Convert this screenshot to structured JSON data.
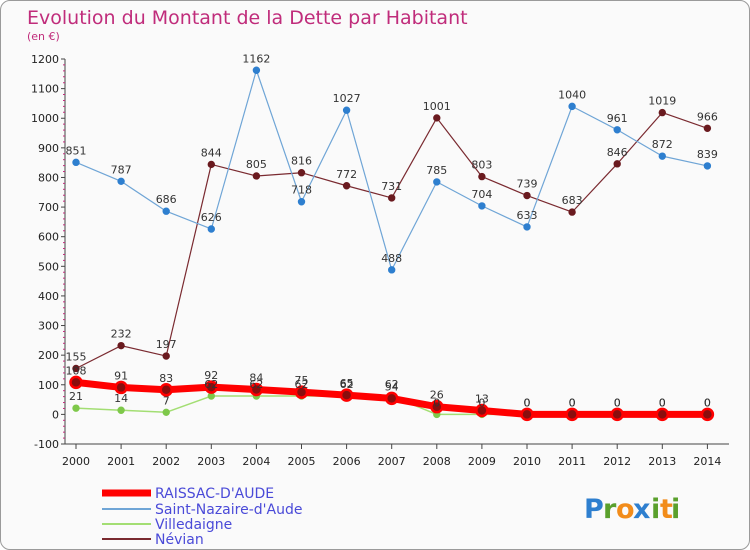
{
  "title": "Evolution du Montant de la Dette par Habitant",
  "unit": "(en €)",
  "brand": {
    "letters": [
      "P",
      "r",
      "o",
      "x",
      "i",
      "t",
      "i"
    ],
    "colors": [
      "#2e7fcf",
      "#5aa02c",
      "#f28c1a",
      "#2e7fcf",
      "#5aa02c",
      "#f28c1a",
      "#5aa02c"
    ]
  },
  "chart_data": {
    "type": "line",
    "title": "Evolution du Montant de la Dette par Habitant",
    "subtitle": "(en €)",
    "xlabel": "",
    "ylabel": "",
    "x": [
      "2000",
      "2001",
      "2002",
      "2003",
      "2004",
      "2005",
      "2006",
      "2007",
      "2008",
      "2009",
      "2010",
      "2011",
      "2012",
      "2013",
      "2014"
    ],
    "ylim": [
      -100,
      1200
    ],
    "yticks": [
      -100,
      0,
      100,
      200,
      300,
      400,
      500,
      600,
      700,
      800,
      900,
      1000,
      1100,
      1200
    ],
    "grid": false,
    "legend_position": "bottom-left",
    "series": [
      {
        "name": "RAISSAC-D'AUDE",
        "color": "#ff0000",
        "values": [
          108,
          91,
          83,
          92,
          84,
          75,
          65,
          54,
          26,
          13,
          0,
          0,
          0,
          0,
          0
        ]
      },
      {
        "name": "Saint-Nazaire-d'Aude",
        "color": "#6fa5d6",
        "values": [
          851,
          787,
          686,
          626,
          1162,
          718,
          1027,
          488,
          785,
          704,
          633,
          1040,
          961,
          872,
          839
        ]
      },
      {
        "name": "Villedaigne",
        "color": "#a3de73",
        "values": [
          21,
          14,
          7,
          62,
          62,
          62,
          62,
          62,
          0,
          0,
          0,
          0,
          0,
          0,
          0
        ]
      },
      {
        "name": "Névian",
        "color": "#7a2a30",
        "values": [
          155,
          232,
          197,
          844,
          805,
          816,
          772,
          731,
          1001,
          803,
          739,
          683,
          846,
          1019,
          966
        ]
      }
    ]
  }
}
